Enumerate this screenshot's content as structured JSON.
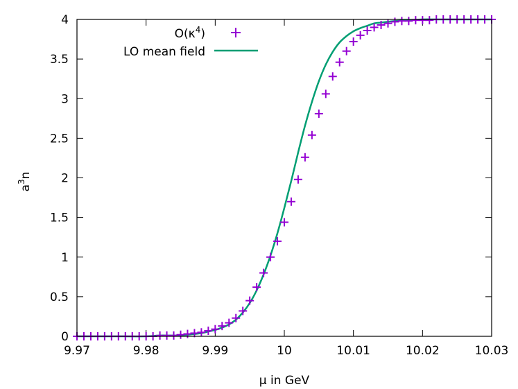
{
  "chart_data": {
    "type": "line",
    "title": "",
    "xlabel": "μ in GeV",
    "ylabel": "a³n",
    "xlim": [
      9.97,
      10.03
    ],
    "ylim": [
      0,
      4
    ],
    "grid": false,
    "legend_position": "top-left",
    "x_ticks": [
      9.97,
      9.98,
      9.99,
      10.0,
      10.01,
      10.02,
      10.03
    ],
    "x_tick_labels": [
      "9.97",
      "9.98",
      "9.99",
      "10",
      "10.01",
      "10.02",
      "10.03"
    ],
    "y_ticks": [
      0,
      0.5,
      1,
      1.5,
      2,
      2.5,
      3,
      3.5,
      4
    ],
    "y_tick_labels": [
      "0",
      "0.5",
      "1",
      "1.5",
      "2",
      "2.5",
      "3",
      "3.5",
      "4"
    ],
    "series": [
      {
        "name": "O(κ⁴)",
        "name_main": "O(κ",
        "name_sup": "4",
        "name_tail": ")",
        "style": "points",
        "marker": "plus",
        "color": "#9400d3",
        "x": [
          9.97,
          9.971,
          9.972,
          9.973,
          9.974,
          9.975,
          9.976,
          9.977,
          9.978,
          9.979,
          9.98,
          9.981,
          9.982,
          9.983,
          9.984,
          9.985,
          9.986,
          9.987,
          9.988,
          9.989,
          9.99,
          9.991,
          9.992,
          9.993,
          9.994,
          9.995,
          9.996,
          9.997,
          9.998,
          9.999,
          10.0,
          10.001,
          10.002,
          10.003,
          10.004,
          10.005,
          10.006,
          10.007,
          10.008,
          10.009,
          10.01,
          10.011,
          10.012,
          10.013,
          10.014,
          10.015,
          10.016,
          10.017,
          10.018,
          10.019,
          10.02,
          10.021,
          10.022,
          10.023,
          10.024,
          10.025,
          10.026,
          10.027,
          10.028,
          10.029,
          10.03
        ],
        "y": [
          0.0,
          0.0,
          0.0,
          0.0,
          0.0,
          0.0,
          0.0,
          0.0,
          0.0,
          0.0,
          0.0,
          0.0,
          0.01,
          0.01,
          0.01,
          0.02,
          0.03,
          0.04,
          0.05,
          0.07,
          0.09,
          0.13,
          0.17,
          0.23,
          0.32,
          0.45,
          0.62,
          0.8,
          1.0,
          1.2,
          1.44,
          1.7,
          1.98,
          2.26,
          2.54,
          2.81,
          3.06,
          3.28,
          3.46,
          3.6,
          3.72,
          3.8,
          3.86,
          3.9,
          3.93,
          3.95,
          3.97,
          3.98,
          3.98,
          3.99,
          3.99,
          3.99,
          4.0,
          4.0,
          4.0,
          4.0,
          4.0,
          4.0,
          4.0,
          4.0,
          4.0
        ]
      },
      {
        "name": "LO mean field",
        "style": "line",
        "color": "#009e73",
        "x": [
          9.97,
          9.975,
          9.98,
          9.982,
          9.984,
          9.986,
          9.988,
          9.989,
          9.99,
          9.991,
          9.992,
          9.993,
          9.994,
          9.995,
          9.996,
          9.997,
          9.998,
          9.999,
          10.0,
          10.001,
          10.002,
          10.003,
          10.004,
          10.005,
          10.006,
          10.007,
          10.008,
          10.009,
          10.01,
          10.011,
          10.012,
          10.013,
          10.014,
          10.015,
          10.016,
          10.018,
          10.02,
          10.022,
          10.025,
          10.03
        ],
        "y": [
          0.0,
          0.0,
          0.0,
          0.01,
          0.01,
          0.02,
          0.04,
          0.06,
          0.08,
          0.11,
          0.15,
          0.21,
          0.3,
          0.42,
          0.58,
          0.78,
          1.02,
          1.3,
          1.62,
          1.96,
          2.32,
          2.66,
          2.96,
          3.22,
          3.43,
          3.59,
          3.71,
          3.79,
          3.85,
          3.89,
          3.92,
          3.95,
          3.96,
          3.97,
          3.98,
          3.99,
          4.0,
          4.0,
          4.0,
          4.0
        ]
      }
    ]
  }
}
